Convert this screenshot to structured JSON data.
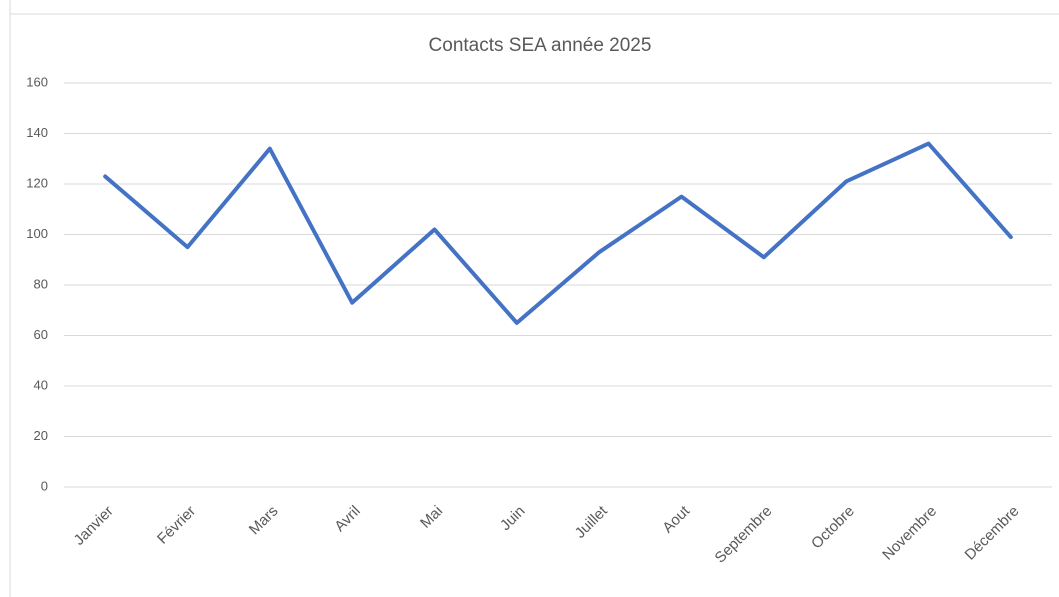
{
  "chart_data": {
    "type": "line",
    "title": "Contacts SEA année 2025",
    "categories": [
      "Janvier",
      "Février",
      "Mars",
      "Avril",
      "Mai",
      "Juin",
      "Juillet",
      "Aout",
      "Septembre",
      "Octobre",
      "Novembre",
      "Décembre"
    ],
    "series": [
      {
        "name": "Contacts",
        "color": "#4472c4",
        "values": [
          123,
          95,
          134,
          73,
          102,
          65,
          93,
          115,
          91,
          121,
          136,
          99
        ]
      }
    ],
    "ylim": [
      0,
      160
    ],
    "yticks": [
      0,
      20,
      40,
      60,
      80,
      100,
      120,
      140,
      160
    ],
    "grid": true
  }
}
